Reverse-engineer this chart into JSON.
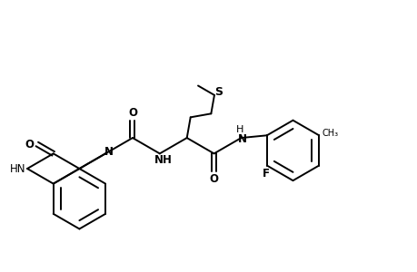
{
  "figsize": [
    4.6,
    3.0
  ],
  "dpi": 100,
  "bg_color": "#ffffff",
  "line_color": "#000000",
  "lw": 1.4,
  "fs_label": 8.5,
  "xlim": [
    0,
    10
  ],
  "ylim": [
    0,
    6.5
  ]
}
